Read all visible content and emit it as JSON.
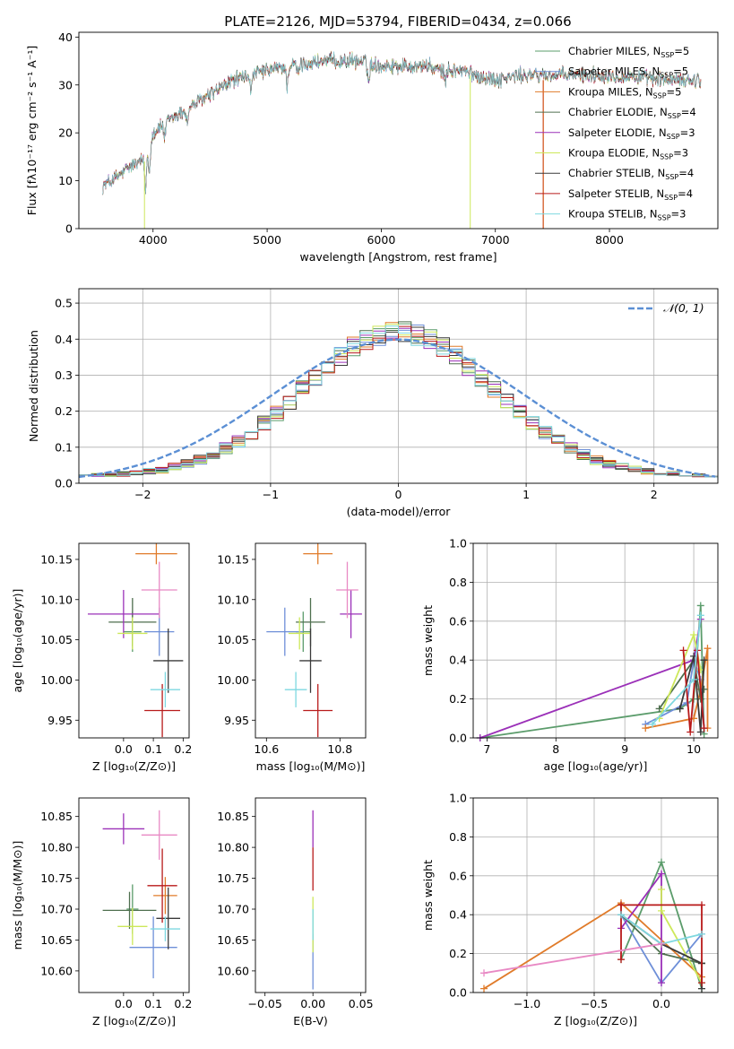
{
  "colors": {
    "Chabrier MILES": "#5b9c6b",
    "Salpeter MILES": "#6e8fd8",
    "Kroupa MILES": "#e07b2a",
    "Chabrier ELODIE": "#4f6f4f",
    "Salpeter ELODIE": "#9b30b8",
    "Kroupa ELODIE": "#cde85a",
    "Chabrier STELIB": "#3a3a3a",
    "Salpeter STELIB": "#b81a1a",
    "Kroupa STELIB": "#7ed8e0",
    "gaussian": "#5b8fd4",
    "pink": "#e889c4"
  },
  "chart_data": [
    {
      "id": "spectrum",
      "type": "line",
      "title": "PLATE=2126, MJD=53794, FIBERID=0434, z=0.066",
      "xlabel": "wavelength [Angstrom, rest frame]",
      "ylabel": "Flux [fλ10⁻¹⁷ erg cm⁻² s⁻¹ A⁻¹]",
      "xlim": [
        3350,
        8950
      ],
      "ylim": [
        0,
        41
      ],
      "xticks": [
        4000,
        5000,
        6000,
        7000,
        8000
      ],
      "yticks": [
        0,
        10,
        20,
        30,
        40
      ],
      "grid": false,
      "legend_position": "top-right",
      "legend": [
        {
          "name": "Chabrier MILES",
          "nssp": "5"
        },
        {
          "name": "Salpeter MILES",
          "nssp": "5"
        },
        {
          "name": "Kroupa MILES",
          "nssp": "5"
        },
        {
          "name": "Chabrier ELODIE",
          "nssp": "4"
        },
        {
          "name": "Salpeter ELODIE",
          "nssp": "3"
        },
        {
          "name": "Kroupa ELODIE",
          "nssp": "3"
        },
        {
          "name": "Chabrier STELIB",
          "nssp": "4"
        },
        {
          "name": "Salpeter STELIB",
          "nssp": "4"
        },
        {
          "name": "Kroupa STELIB",
          "nssp": "3"
        }
      ],
      "continuum": {
        "x": [
          3560,
          3700,
          3800,
          3900,
          4000,
          4100,
          4300,
          4500,
          4700,
          5000,
          5200,
          5500,
          5800,
          6000,
          6200,
          6400,
          6500,
          6700,
          7000,
          7200,
          7500,
          8000,
          8500,
          8800
        ],
        "y": [
          9,
          11,
          13,
          14,
          20,
          22,
          25,
          28,
          31,
          33,
          34,
          35,
          35,
          34,
          34,
          34,
          33,
          33,
          31,
          32,
          32,
          32,
          31,
          31
        ]
      }
    },
    {
      "id": "residuals",
      "type": "step",
      "xlabel": "(data-model)/error",
      "ylabel": "Normed distribution",
      "xlim": [
        -2.5,
        2.5
      ],
      "ylim": [
        0,
        0.54
      ],
      "xticks": [
        -2,
        -1,
        0,
        1,
        2
      ],
      "yticks": [
        0.0,
        0.1,
        0.2,
        0.3,
        0.4,
        0.5
      ],
      "grid": true,
      "legend": "𝒩(0, 1)",
      "legend_position": "top-right"
    },
    {
      "id": "age-vs-Z",
      "type": "errorbar",
      "xlabel": "Z [log₁₀(Z/Z⊙)]",
      "ylabel": "age  [log₁₀(age/yr)]",
      "xlim": [
        -0.15,
        0.22
      ],
      "ylim": [
        9.928,
        10.17
      ],
      "xticks": [
        0.0,
        0.1,
        0.2
      ],
      "yticks": [
        9.95,
        10.0,
        10.05,
        10.1,
        10.15
      ],
      "points": [
        {
          "model": "Chabrier MILES",
          "x": 0.03,
          "y": 10.06,
          "xerr": 0.03,
          "yerr": 0.025
        },
        {
          "model": "Salpeter MILES",
          "x": 0.12,
          "y": 10.06,
          "xerr": 0.05,
          "yerr": 0.03
        },
        {
          "model": "Kroupa MILES",
          "x": 0.11,
          "y": 10.157,
          "xerr": 0.07,
          "yerr": 0.013
        },
        {
          "model": "Chabrier ELODIE",
          "x": 0.03,
          "y": 10.072,
          "xerr": 0.08,
          "yerr": 0.03
        },
        {
          "model": "Salpeter ELODIE",
          "x": 0.0,
          "y": 10.082,
          "xerr": 0.12,
          "yerr": 0.03
        },
        {
          "model": "Kroupa ELODIE",
          "x": 0.03,
          "y": 10.058,
          "xerr": 0.05,
          "yerr": 0.02
        },
        {
          "model": "Chabrier STELIB",
          "x": 0.15,
          "y": 10.024,
          "xerr": 0.05,
          "yerr": 0.04
        },
        {
          "model": "Salpeter STELIB",
          "x": 0.13,
          "y": 9.962,
          "xerr": 0.06,
          "yerr": 0.033
        },
        {
          "model": "Kroupa STELIB",
          "x": 0.14,
          "y": 9.988,
          "xerr": 0.05,
          "yerr": 0.022
        },
        {
          "model": "pink",
          "x": 0.12,
          "y": 10.112,
          "xerr": 0.06,
          "yerr": 0.035
        }
      ]
    },
    {
      "id": "age-vs-mass",
      "type": "errorbar",
      "xlabel": "mass [log₁₀(M/M⊙)]",
      "xlim": [
        10.57,
        10.87
      ],
      "ylim": [
        9.928,
        10.17
      ],
      "xticks": [
        10.6,
        10.8
      ],
      "yticks": [
        9.95,
        10.0,
        10.05,
        10.1,
        10.15
      ],
      "points": [
        {
          "model": "Chabrier MILES",
          "x": 10.7,
          "y": 10.06,
          "xerr": 0.02,
          "yerr": 0.025
        },
        {
          "model": "Salpeter MILES",
          "x": 10.65,
          "y": 10.06,
          "xerr": 0.05,
          "yerr": 0.03
        },
        {
          "model": "Kroupa MILES",
          "x": 10.74,
          "y": 10.157,
          "xerr": 0.04,
          "yerr": 0.013
        },
        {
          "model": "Chabrier ELODIE",
          "x": 10.72,
          "y": 10.072,
          "xerr": 0.04,
          "yerr": 0.03
        },
        {
          "model": "Salpeter ELODIE",
          "x": 10.83,
          "y": 10.082,
          "xerr": 0.03,
          "yerr": 0.03
        },
        {
          "model": "Kroupa ELODIE",
          "x": 10.69,
          "y": 10.058,
          "xerr": 0.03,
          "yerr": 0.02
        },
        {
          "model": "Chabrier STELIB",
          "x": 10.72,
          "y": 10.024,
          "xerr": 0.03,
          "yerr": 0.04
        },
        {
          "model": "Salpeter STELIB",
          "x": 10.74,
          "y": 9.962,
          "xerr": 0.04,
          "yerr": 0.033
        },
        {
          "model": "Kroupa STELIB",
          "x": 10.68,
          "y": 9.988,
          "xerr": 0.03,
          "yerr": 0.022
        },
        {
          "model": "pink",
          "x": 10.82,
          "y": 10.112,
          "xerr": 0.03,
          "yerr": 0.035
        }
      ]
    },
    {
      "id": "weight-vs-age",
      "type": "line",
      "xlabel": "age  [log₁₀(age/yr)]",
      "ylabel": "mass weight",
      "xlim": [
        6.8,
        10.35
      ],
      "ylim": [
        0,
        1
      ],
      "xticks": [
        7,
        8,
        9,
        10
      ],
      "yticks": [
        0.0,
        0.2,
        0.4,
        0.6,
        0.8,
        1.0
      ],
      "grid": true,
      "series": [
        {
          "model": "Chabrier MILES",
          "x": [
            6.9,
            9.8,
            10.0,
            10.1,
            10.15
          ],
          "y": [
            0.0,
            0.15,
            0.2,
            0.68,
            0.02
          ]
        },
        {
          "model": "Salpeter MILES",
          "x": [
            9.3,
            9.9,
            10.0,
            10.1,
            10.15
          ],
          "y": [
            0.07,
            0.18,
            0.4,
            0.3,
            0.05
          ]
        },
        {
          "model": "Kroupa MILES",
          "x": [
            9.3,
            10.0,
            10.1,
            10.2,
            10.2
          ],
          "y": [
            0.05,
            0.1,
            0.25,
            0.46,
            0.05
          ]
        },
        {
          "model": "Chabrier ELODIE",
          "x": [
            9.5,
            10.0,
            10.1,
            10.15
          ],
          "y": [
            0.15,
            0.4,
            0.2,
            0.25
          ]
        },
        {
          "model": "Salpeter ELODIE",
          "x": [
            6.9,
            10.0,
            10.1
          ],
          "y": [
            0.0,
            0.4,
            0.61
          ]
        },
        {
          "model": "Kroupa ELODIE",
          "x": [
            9.5,
            10.0,
            10.1
          ],
          "y": [
            0.1,
            0.53,
            0.35
          ]
        },
        {
          "model": "Chabrier STELIB",
          "x": [
            9.8,
            10.0,
            10.1,
            10.15
          ],
          "y": [
            0.15,
            0.42,
            0.03,
            0.4
          ]
        },
        {
          "model": "Salpeter STELIB",
          "x": [
            9.85,
            9.95,
            10.05,
            10.15
          ],
          "y": [
            0.45,
            0.03,
            0.45,
            0.05
          ]
        },
        {
          "model": "Kroupa STELIB",
          "x": [
            9.4,
            10.0,
            10.1
          ],
          "y": [
            0.07,
            0.3,
            0.63
          ]
        }
      ]
    },
    {
      "id": "mass-vs-Z",
      "type": "errorbar",
      "xlabel": "Z [log₁₀(Z/Z⊙)]",
      "ylabel": "mass [log₁₀(M/M⊙)]",
      "xlim": [
        -0.15,
        0.22
      ],
      "ylim": [
        10.565,
        10.88
      ],
      "xticks": [
        0.0,
        0.1,
        0.2
      ],
      "yticks": [
        10.6,
        10.65,
        10.7,
        10.75,
        10.8,
        10.85
      ],
      "points": [
        {
          "model": "Chabrier MILES",
          "x": 0.03,
          "y": 10.7,
          "xerr": 0.02,
          "yerr": 0.04
        },
        {
          "model": "Salpeter MILES",
          "x": 0.1,
          "y": 10.638,
          "xerr": 0.08,
          "yerr": 0.05
        },
        {
          "model": "Kroupa MILES",
          "x": 0.14,
          "y": 10.722,
          "xerr": 0.04,
          "yerr": 0.03
        },
        {
          "model": "Chabrier ELODIE",
          "x": 0.02,
          "y": 10.698,
          "xerr": 0.09,
          "yerr": 0.03
        },
        {
          "model": "Salpeter ELODIE",
          "x": 0.0,
          "y": 10.83,
          "xerr": 0.07,
          "yerr": 0.025
        },
        {
          "model": "Kroupa ELODIE",
          "x": 0.03,
          "y": 10.672,
          "xerr": 0.05,
          "yerr": 0.03
        },
        {
          "model": "Chabrier STELIB",
          "x": 0.15,
          "y": 10.685,
          "xerr": 0.04,
          "yerr": 0.05
        },
        {
          "model": "Salpeter STELIB",
          "x": 0.13,
          "y": 10.738,
          "xerr": 0.05,
          "yerr": 0.06
        },
        {
          "model": "Kroupa STELIB",
          "x": 0.14,
          "y": 10.668,
          "xerr": 0.05,
          "yerr": 0.02
        },
        {
          "model": "pink",
          "x": 0.12,
          "y": 10.82,
          "xerr": 0.06,
          "yerr": 0.04
        }
      ]
    },
    {
      "id": "mass-vs-ebv",
      "type": "errorbar",
      "xlabel": "E(B-V)",
      "xlim": [
        -0.06,
        0.055
      ],
      "ylim": [
        10.565,
        10.88
      ],
      "xticks": [
        -0.05,
        0.0,
        0.05
      ],
      "yticks": [
        10.6,
        10.65,
        10.7,
        10.75,
        10.8,
        10.85
      ],
      "segments": [
        {
          "model": "Salpeter MILES",
          "x": 0.0,
          "y0": 10.57,
          "y1": 10.66
        },
        {
          "model": "Kroupa ELODIE",
          "x": 0.0,
          "y0": 10.63,
          "y1": 10.72
        },
        {
          "model": "Kroupa STELIB",
          "x": 0.0,
          "y0": 10.65,
          "y1": 10.7
        },
        {
          "model": "Salpeter STELIB",
          "x": 0.0,
          "y0": 10.73,
          "y1": 10.8
        },
        {
          "model": "Salpeter ELODIE",
          "x": 0.0,
          "y0": 10.8,
          "y1": 10.86
        }
      ]
    },
    {
      "id": "weight-vs-Z",
      "type": "line",
      "xlabel": "Z [log₁₀(Z/Z⊙)]",
      "ylabel": "mass weight",
      "xlim": [
        -1.4,
        0.42
      ],
      "ylim": [
        0,
        1
      ],
      "xticks": [
        -1.0,
        -0.5,
        0.0
      ],
      "yticks": [
        0.0,
        0.2,
        0.4,
        0.6,
        0.8,
        1.0
      ],
      "grid": true,
      "series": [
        {
          "model": "Chabrier MILES",
          "x": [
            -0.3,
            0.0,
            0.3,
            0.3
          ],
          "y": [
            0.17,
            0.67,
            0.02,
            0.15
          ]
        },
        {
          "model": "Salpeter MILES",
          "x": [
            -0.3,
            0.0,
            0.3
          ],
          "y": [
            0.4,
            0.05,
            0.3
          ]
        },
        {
          "model": "Kroupa MILES",
          "x": [
            -1.32,
            -0.3,
            0.3,
            0.3
          ],
          "y": [
            0.02,
            0.46,
            0.08,
            0.15
          ]
        },
        {
          "model": "Chabrier ELODIE",
          "x": [
            -0.3,
            0.0,
            0.3
          ],
          "y": [
            0.4,
            0.2,
            0.15
          ]
        },
        {
          "model": "Salpeter ELODIE",
          "x": [
            -0.3,
            0.0,
            0.0
          ],
          "y": [
            0.33,
            0.61,
            0.05
          ]
        },
        {
          "model": "Kroupa ELODIE",
          "x": [
            0.0,
            0.0,
            0.3
          ],
          "y": [
            0.53,
            0.42,
            0.05
          ]
        },
        {
          "model": "Chabrier STELIB",
          "x": [
            -0.3,
            0.0,
            0.3,
            0.3
          ],
          "y": [
            0.4,
            0.25,
            0.15,
            0.02
          ]
        },
        {
          "model": "Salpeter STELIB",
          "x": [
            -0.3,
            -0.3,
            0.3,
            0.3
          ],
          "y": [
            0.17,
            0.45,
            0.45,
            0.05
          ]
        },
        {
          "model": "Kroupa STELIB",
          "x": [
            -0.3,
            0.0,
            0.3
          ],
          "y": [
            0.4,
            0.25,
            0.3
          ]
        },
        {
          "model": "pink",
          "x": [
            -1.32,
            0.0
          ],
          "y": [
            0.1,
            0.25
          ]
        }
      ]
    }
  ]
}
